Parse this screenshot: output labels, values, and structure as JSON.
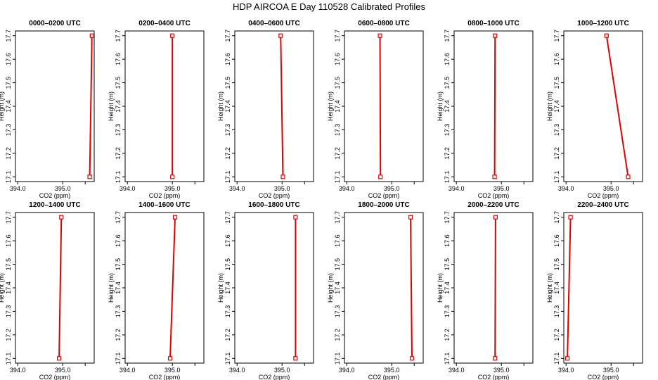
{
  "figure": {
    "title": "HDP AIRCOA E  Day 110528  Calibrated Profiles",
    "line_color": "#e00000"
  },
  "chart_data": [
    {
      "type": "line",
      "title": "0000–0200 UTC",
      "xlabel": "CO2 (ppm)",
      "ylabel": "Height (m)",
      "xlim": [
        393.95,
        395.7
      ],
      "ylim": [
        17.08,
        17.72
      ],
      "x_ticks": [
        "394.0",
        "395.0"
      ],
      "y_ticks": [
        "17.1",
        "17.2",
        "17.3",
        "17.4",
        "17.5",
        "17.6",
        "17.7"
      ],
      "series": [
        {
          "x": [
            395.6,
            395.65
          ],
          "y": [
            17.1,
            17.7
          ]
        }
      ]
    },
    {
      "type": "line",
      "title": "0200–0400 UTC",
      "xlabel": "CO2 (ppm)",
      "ylabel": "Height (m)",
      "xlim": [
        393.95,
        395.7
      ],
      "ylim": [
        17.08,
        17.72
      ],
      "x_ticks": [
        "394.0",
        "395.0"
      ],
      "y_ticks": [
        "17.1",
        "17.2",
        "17.3",
        "17.4",
        "17.5",
        "17.6",
        "17.7"
      ],
      "series": [
        {
          "x": [
            395.0,
            395.0
          ],
          "y": [
            17.1,
            17.7
          ]
        }
      ]
    },
    {
      "type": "line",
      "title": "0400–0600 UTC",
      "xlabel": "CO2 (ppm)",
      "ylabel": "Height (m)",
      "xlim": [
        393.95,
        395.7
      ],
      "ylim": [
        17.08,
        17.72
      ],
      "x_ticks": [
        "394.0",
        "395.0"
      ],
      "y_ticks": [
        "17.1",
        "17.2",
        "17.3",
        "17.4",
        "17.5",
        "17.6",
        "17.7"
      ],
      "series": [
        {
          "x": [
            395.02,
            394.97
          ],
          "y": [
            17.1,
            17.7
          ]
        }
      ]
    },
    {
      "type": "line",
      "title": "0600–0800 UTC",
      "xlabel": "CO2 (ppm)",
      "ylabel": "Height (m)",
      "xlim": [
        393.95,
        395.7
      ],
      "ylim": [
        17.08,
        17.72
      ],
      "x_ticks": [
        "394.0",
        "395.0"
      ],
      "y_ticks": [
        "17.1",
        "17.2",
        "17.3",
        "17.4",
        "17.5",
        "17.6",
        "17.7"
      ],
      "series": [
        {
          "x": [
            394.75,
            394.74
          ],
          "y": [
            17.1,
            17.7
          ]
        }
      ]
    },
    {
      "type": "line",
      "title": "0800–1000 UTC",
      "xlabel": "CO2 (ppm)",
      "ylabel": "Height (m)",
      "xlim": [
        393.95,
        395.7
      ],
      "ylim": [
        17.08,
        17.72
      ],
      "x_ticks": [
        "394.0",
        "395.0"
      ],
      "y_ticks": [
        "17.1",
        "17.2",
        "17.3",
        "17.4",
        "17.5",
        "17.6",
        "17.7"
      ],
      "series": [
        {
          "x": [
            394.85,
            394.86
          ],
          "y": [
            17.1,
            17.7
          ]
        }
      ]
    },
    {
      "type": "line",
      "title": "1000–1200 UTC",
      "xlabel": "CO2 (ppm)",
      "ylabel": "Height (m)",
      "xlim": [
        393.95,
        395.7
      ],
      "ylim": [
        17.08,
        17.72
      ],
      "x_ticks": [
        "394.0",
        "395.0"
      ],
      "y_ticks": [
        "17.1",
        "17.2",
        "17.3",
        "17.4",
        "17.5",
        "17.6",
        "17.7"
      ],
      "series": [
        {
          "x": [
            395.38,
            394.9
          ],
          "y": [
            17.1,
            17.7
          ]
        }
      ]
    },
    {
      "type": "line",
      "title": "1200–1400 UTC",
      "xlabel": "CO2 (ppm)",
      "ylabel": "Height (m)",
      "xlim": [
        393.95,
        395.7
      ],
      "ylim": [
        17.08,
        17.72
      ],
      "x_ticks": [
        "394.0",
        "395.0"
      ],
      "y_ticks": [
        "17.1",
        "17.2",
        "17.3",
        "17.4",
        "17.5",
        "17.6",
        "17.7"
      ],
      "series": [
        {
          "x": [
            394.92,
            394.97
          ],
          "y": [
            17.1,
            17.7
          ]
        }
      ]
    },
    {
      "type": "line",
      "title": "1400–1600 UTC",
      "xlabel": "CO2 (ppm)",
      "ylabel": "Height (m)",
      "xlim": [
        393.95,
        395.7
      ],
      "ylim": [
        17.08,
        17.72
      ],
      "x_ticks": [
        "394.0",
        "395.0"
      ],
      "y_ticks": [
        "17.1",
        "17.2",
        "17.3",
        "17.4",
        "17.5",
        "17.6",
        "17.7"
      ],
      "series": [
        {
          "x": [
            394.95,
            395.06
          ],
          "y": [
            17.1,
            17.7
          ]
        }
      ]
    },
    {
      "type": "line",
      "title": "1600–1800 UTC",
      "xlabel": "CO2 (ppm)",
      "ylabel": "Height (m)",
      "xlim": [
        393.95,
        395.7
      ],
      "ylim": [
        17.08,
        17.72
      ],
      "x_ticks": [
        "394.0",
        "395.0"
      ],
      "y_ticks": [
        "17.1",
        "17.2",
        "17.3",
        "17.4",
        "17.5",
        "17.6",
        "17.7"
      ],
      "series": [
        {
          "x": [
            395.3,
            395.3
          ],
          "y": [
            17.1,
            17.7
          ]
        }
      ]
    },
    {
      "type": "line",
      "title": "1800–2000 UTC",
      "xlabel": "CO2 (ppm)",
      "ylabel": "Height (m)",
      "xlim": [
        393.95,
        395.7
      ],
      "ylim": [
        17.08,
        17.72
      ],
      "x_ticks": [
        "394.0",
        "395.0"
      ],
      "y_ticks": [
        "17.1",
        "17.2",
        "17.3",
        "17.4",
        "17.5",
        "17.6",
        "17.7"
      ],
      "series": [
        {
          "x": [
            395.45,
            395.42
          ],
          "y": [
            17.1,
            17.7
          ]
        }
      ]
    },
    {
      "type": "line",
      "title": "2000–2200 UTC",
      "xlabel": "CO2 (ppm)",
      "ylabel": "Height (m)",
      "xlim": [
        393.95,
        395.7
      ],
      "ylim": [
        17.08,
        17.72
      ],
      "x_ticks": [
        "394.0",
        "395.0"
      ],
      "y_ticks": [
        "17.1",
        "17.2",
        "17.3",
        "17.4",
        "17.5",
        "17.6",
        "17.7"
      ],
      "series": [
        {
          "x": [
            394.86,
            394.87
          ],
          "y": [
            17.1,
            17.7
          ]
        }
      ]
    },
    {
      "type": "line",
      "title": "2200–2400 UTC",
      "xlabel": "CO2 (ppm)",
      "ylabel": "Height (m)",
      "xlim": [
        393.95,
        395.7
      ],
      "ylim": [
        17.08,
        17.72
      ],
      "x_ticks": [
        "394.0",
        "395.0"
      ],
      "y_ticks": [
        "17.1",
        "17.2",
        "17.3",
        "17.4",
        "17.5",
        "17.6",
        "17.7"
      ],
      "series": [
        {
          "x": [
            394.03,
            394.1
          ],
          "y": [
            17.1,
            17.7
          ]
        }
      ]
    }
  ]
}
